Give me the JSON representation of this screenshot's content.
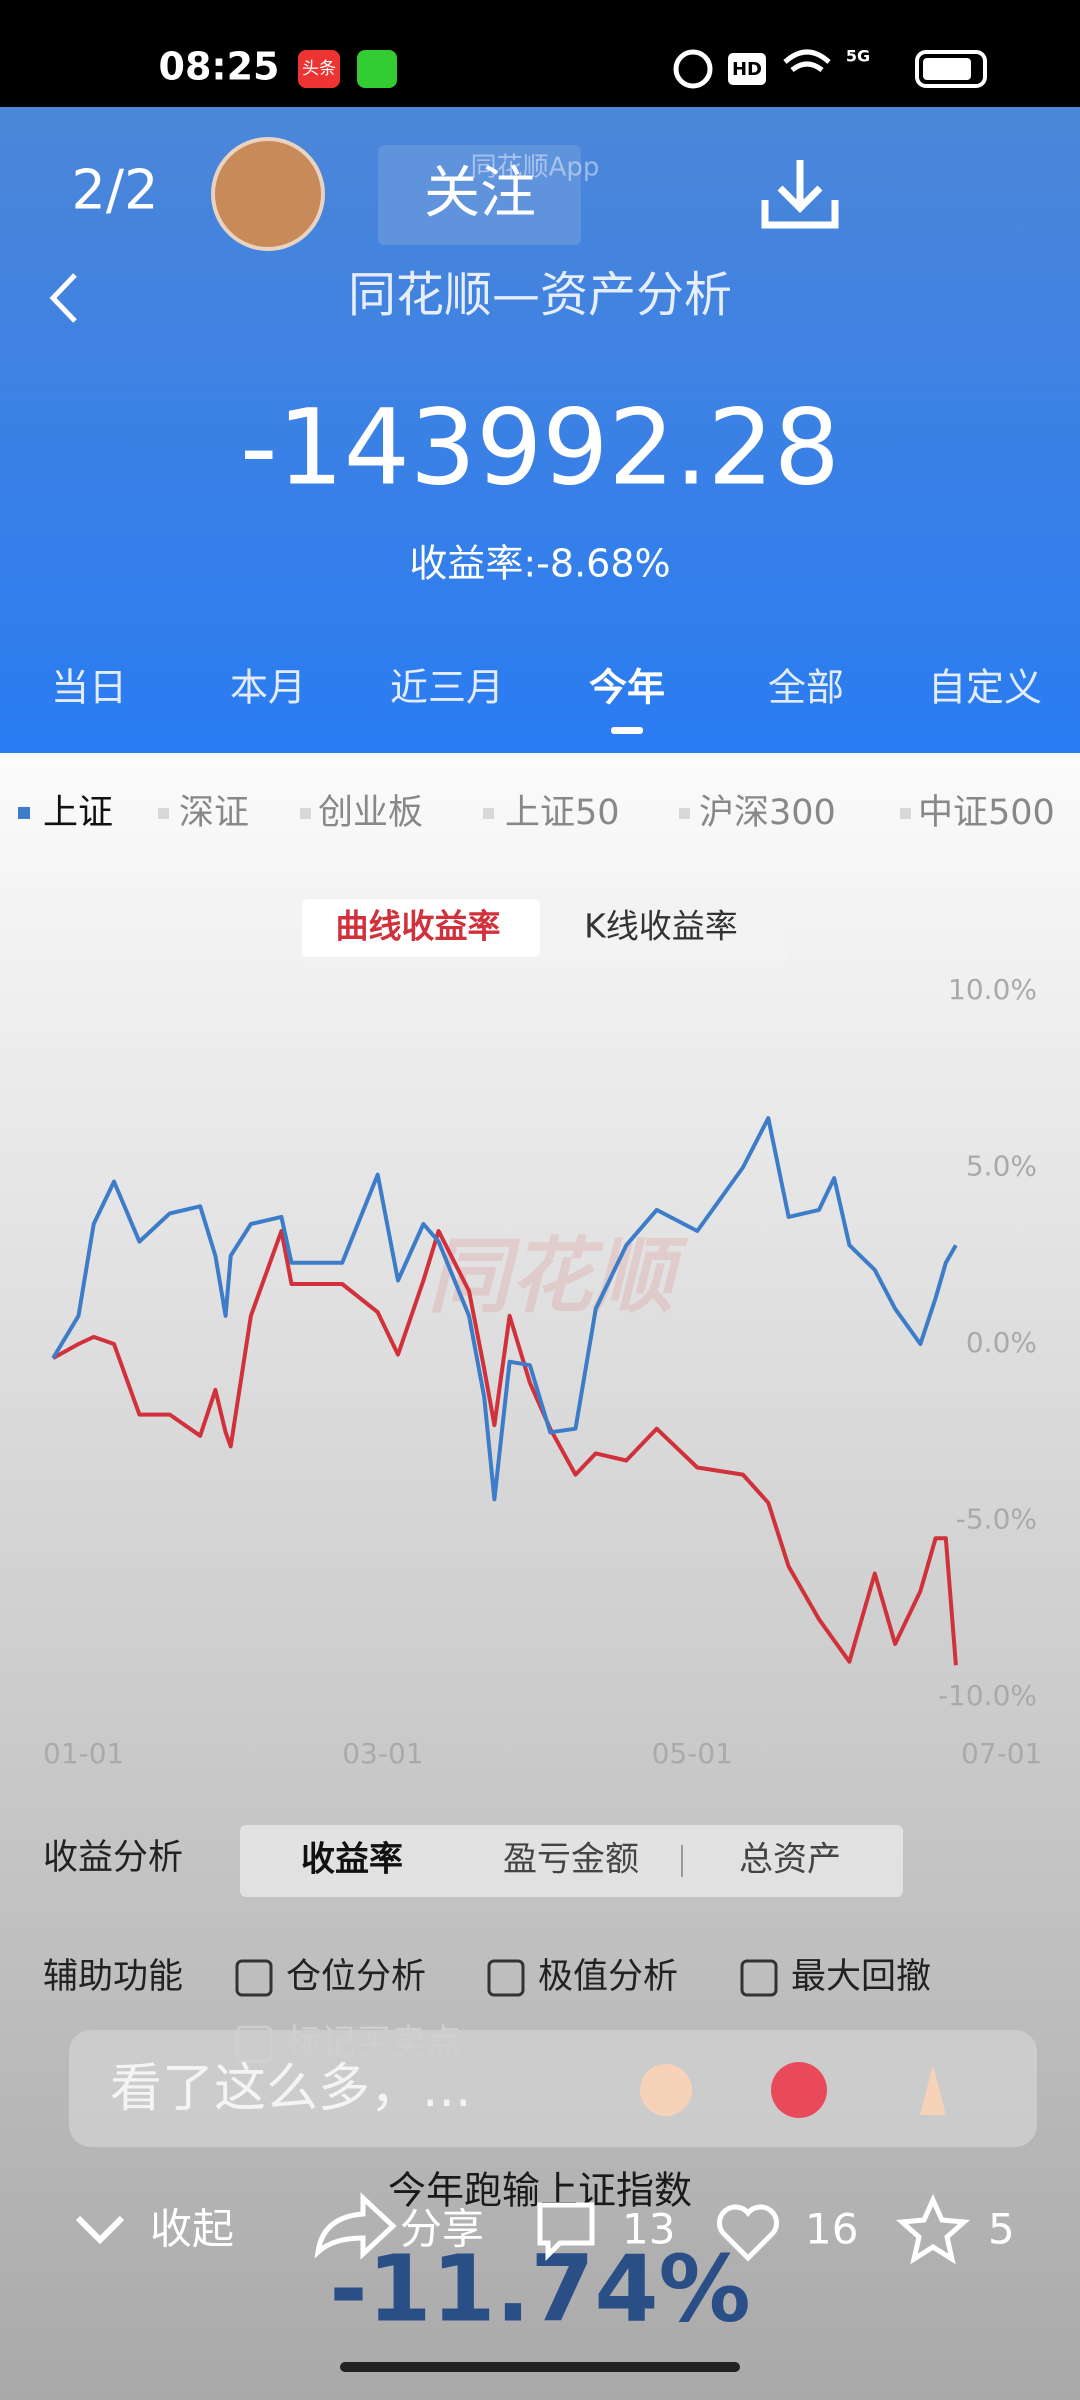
{
  "status_bar": {
    "time": "08:25",
    "badge": "头条",
    "hd": "HD",
    "network": "5G"
  },
  "header": {
    "page_counter": "2/2",
    "follow": "关注",
    "watermark": "同花顺App",
    "title": "同花顺—资产分析",
    "total_profit": "-143992.28",
    "return_rate": "收益率:-8.68%"
  },
  "period_tabs": [
    "当日",
    "本月",
    "近三月",
    "今年",
    "全部",
    "自定义"
  ],
  "chart_data": {
    "type": "line",
    "toggle": [
      "曲线收益率",
      "K线收益率"
    ],
    "watermark": "同花顺",
    "other_indices": [
      "深证",
      "创业板",
      "上证50",
      "沪深300",
      "中证500"
    ],
    "x": [
      "01-03",
      "01-08",
      "01-11",
      "01-15",
      "01-20",
      "01-26",
      "02-01",
      "02-04",
      "02-06",
      "02-07",
      "02-11",
      "02-17",
      "02-19",
      "03-01",
      "03-08",
      "03-12",
      "03-17",
      "03-20",
      "03-26",
      "03-29",
      "03-31",
      "04-03",
      "04-07",
      "04-11",
      "04-16",
      "04-20",
      "04-26",
      "05-02",
      "05-10",
      "05-19",
      "05-24",
      "05-28",
      "06-03",
      "06-06",
      "06-09",
      "06-14",
      "06-18",
      "06-23",
      "06-26",
      "06-28",
      "06-30"
    ],
    "series": [
      {
        "name": "上证",
        "color": "#3d7cc9",
        "values": [
          -0.4,
          0.8,
          3.4,
          4.6,
          2.9,
          3.7,
          3.9,
          2.5,
          0.8,
          2.5,
          3.4,
          3.6,
          2.3,
          2.3,
          4.8,
          1.8,
          3.4,
          2.9,
          0.8,
          -1.5,
          -4.4,
          -0.5,
          -0.6,
          -2.5,
          -2.4,
          1.0,
          2.8,
          3.8,
          3.2,
          5.0,
          6.4,
          3.6,
          3.8,
          4.7,
          2.8,
          2.1,
          1.0,
          0.0,
          1.3,
          2.3,
          2.8
        ]
      },
      {
        "color": "#d0313b",
        "values": [
          -0.4,
          0,
          0.2,
          0,
          -2.0,
          -2.0,
          -2.6,
          -1.3,
          -2.5,
          -2.9,
          0.8,
          3.2,
          1.7,
          1.7,
          0.9,
          -0.3,
          1.8,
          3.2,
          1.5,
          -0.7,
          -2.3,
          0.8,
          -1.1,
          -2.4,
          -3.7,
          -3.1,
          -3.3,
          -2.4,
          -3.5,
          -3.7,
          -4.5,
          -6.3,
          -7.8,
          -8.4,
          -9.0,
          -6.5,
          -8.5,
          -7.0,
          -5.5,
          -5.5,
          -9.1
        ]
      }
    ],
    "ylim": [
      -10,
      10
    ],
    "yticks": [
      {
        "value": 10,
        "label": "10.0%"
      },
      {
        "value": 5,
        "label": "5.0%"
      },
      {
        "value": 0,
        "label": "0.0%"
      },
      {
        "value": -5,
        "label": "-5.0%"
      },
      {
        "value": -10,
        "label": "-10.0%"
      }
    ],
    "xticks": [
      "01-01",
      "03-01",
      "05-01",
      "07-01"
    ],
    "grid": false
  },
  "analysis": {
    "label": "收益分析",
    "options": [
      "收益率",
      "盈亏金额",
      "总资产"
    ]
  },
  "assist": {
    "label": "辅助功能",
    "options": [
      "仓位分析",
      "极值分析",
      "最大回撤",
      "标记买卖点"
    ]
  },
  "comment_box": {
    "placeholder": "看了这么多，..."
  },
  "summary": {
    "caption": "今年跑输上证指数",
    "value": "-11.74%"
  },
  "footer": {
    "collapse": "收起",
    "share": "分享",
    "comments": 13,
    "likes": 16,
    "favorites": 5
  }
}
